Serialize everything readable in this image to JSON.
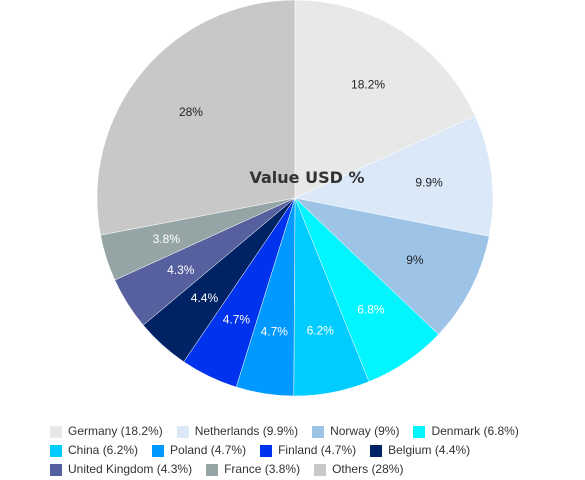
{
  "chart_data": {
    "type": "pie",
    "title": "Value USD %",
    "legend_position": "bottom",
    "slices": [
      {
        "name": "Germany",
        "value": 18.2,
        "label": "18.2%",
        "legend": "Germany (18.2%)",
        "color": "#e8e8e8",
        "label_color": "#222222"
      },
      {
        "name": "Netherlands",
        "value": 9.9,
        "label": "9.9%",
        "legend": "Netherlands (9.9%)",
        "color": "#dae8f7",
        "label_color": "#222222"
      },
      {
        "name": "Norway",
        "value": 9,
        "label": "9%",
        "legend": "Norway (9%)",
        "color": "#9dc3e6",
        "label_color": "#222222"
      },
      {
        "name": "Denmark",
        "value": 6.8,
        "label": "6.8%",
        "legend": "Denmark (6.8%)",
        "color": "#00f5ff",
        "label_color": "#ffffff"
      },
      {
        "name": "China",
        "value": 6.2,
        "label": "6.2%",
        "legend": "China (6.2%)",
        "color": "#00ccff",
        "label_color": "#ffffff"
      },
      {
        "name": "Poland",
        "value": 4.7,
        "label": "4.7%",
        "legend": "Poland (4.7%)",
        "color": "#0099ff",
        "label_color": "#ffffff"
      },
      {
        "name": "Finland",
        "value": 4.7,
        "label": "4.7%",
        "legend": "Finland (4.7%)",
        "color": "#0033ee",
        "label_color": "#ffffff"
      },
      {
        "name": "Belgium",
        "value": 4.4,
        "label": "4.4%",
        "legend": "Belgium (4.4%)",
        "color": "#002366",
        "label_color": "#ffffff"
      },
      {
        "name": "United Kingdom",
        "value": 4.3,
        "label": "4.3%",
        "legend": "United Kingdom (4.3%)",
        "color": "#56609e",
        "label_color": "#ffffff"
      },
      {
        "name": "France",
        "value": 3.8,
        "label": "3.8%",
        "legend": "France (3.8%)",
        "color": "#95a5a6",
        "label_color": "#ffffff"
      },
      {
        "name": "Others",
        "value": 28,
        "label": "28%",
        "legend": "Others (28%)",
        "color": "#c8c8c8",
        "label_color": "#222222"
      }
    ]
  }
}
